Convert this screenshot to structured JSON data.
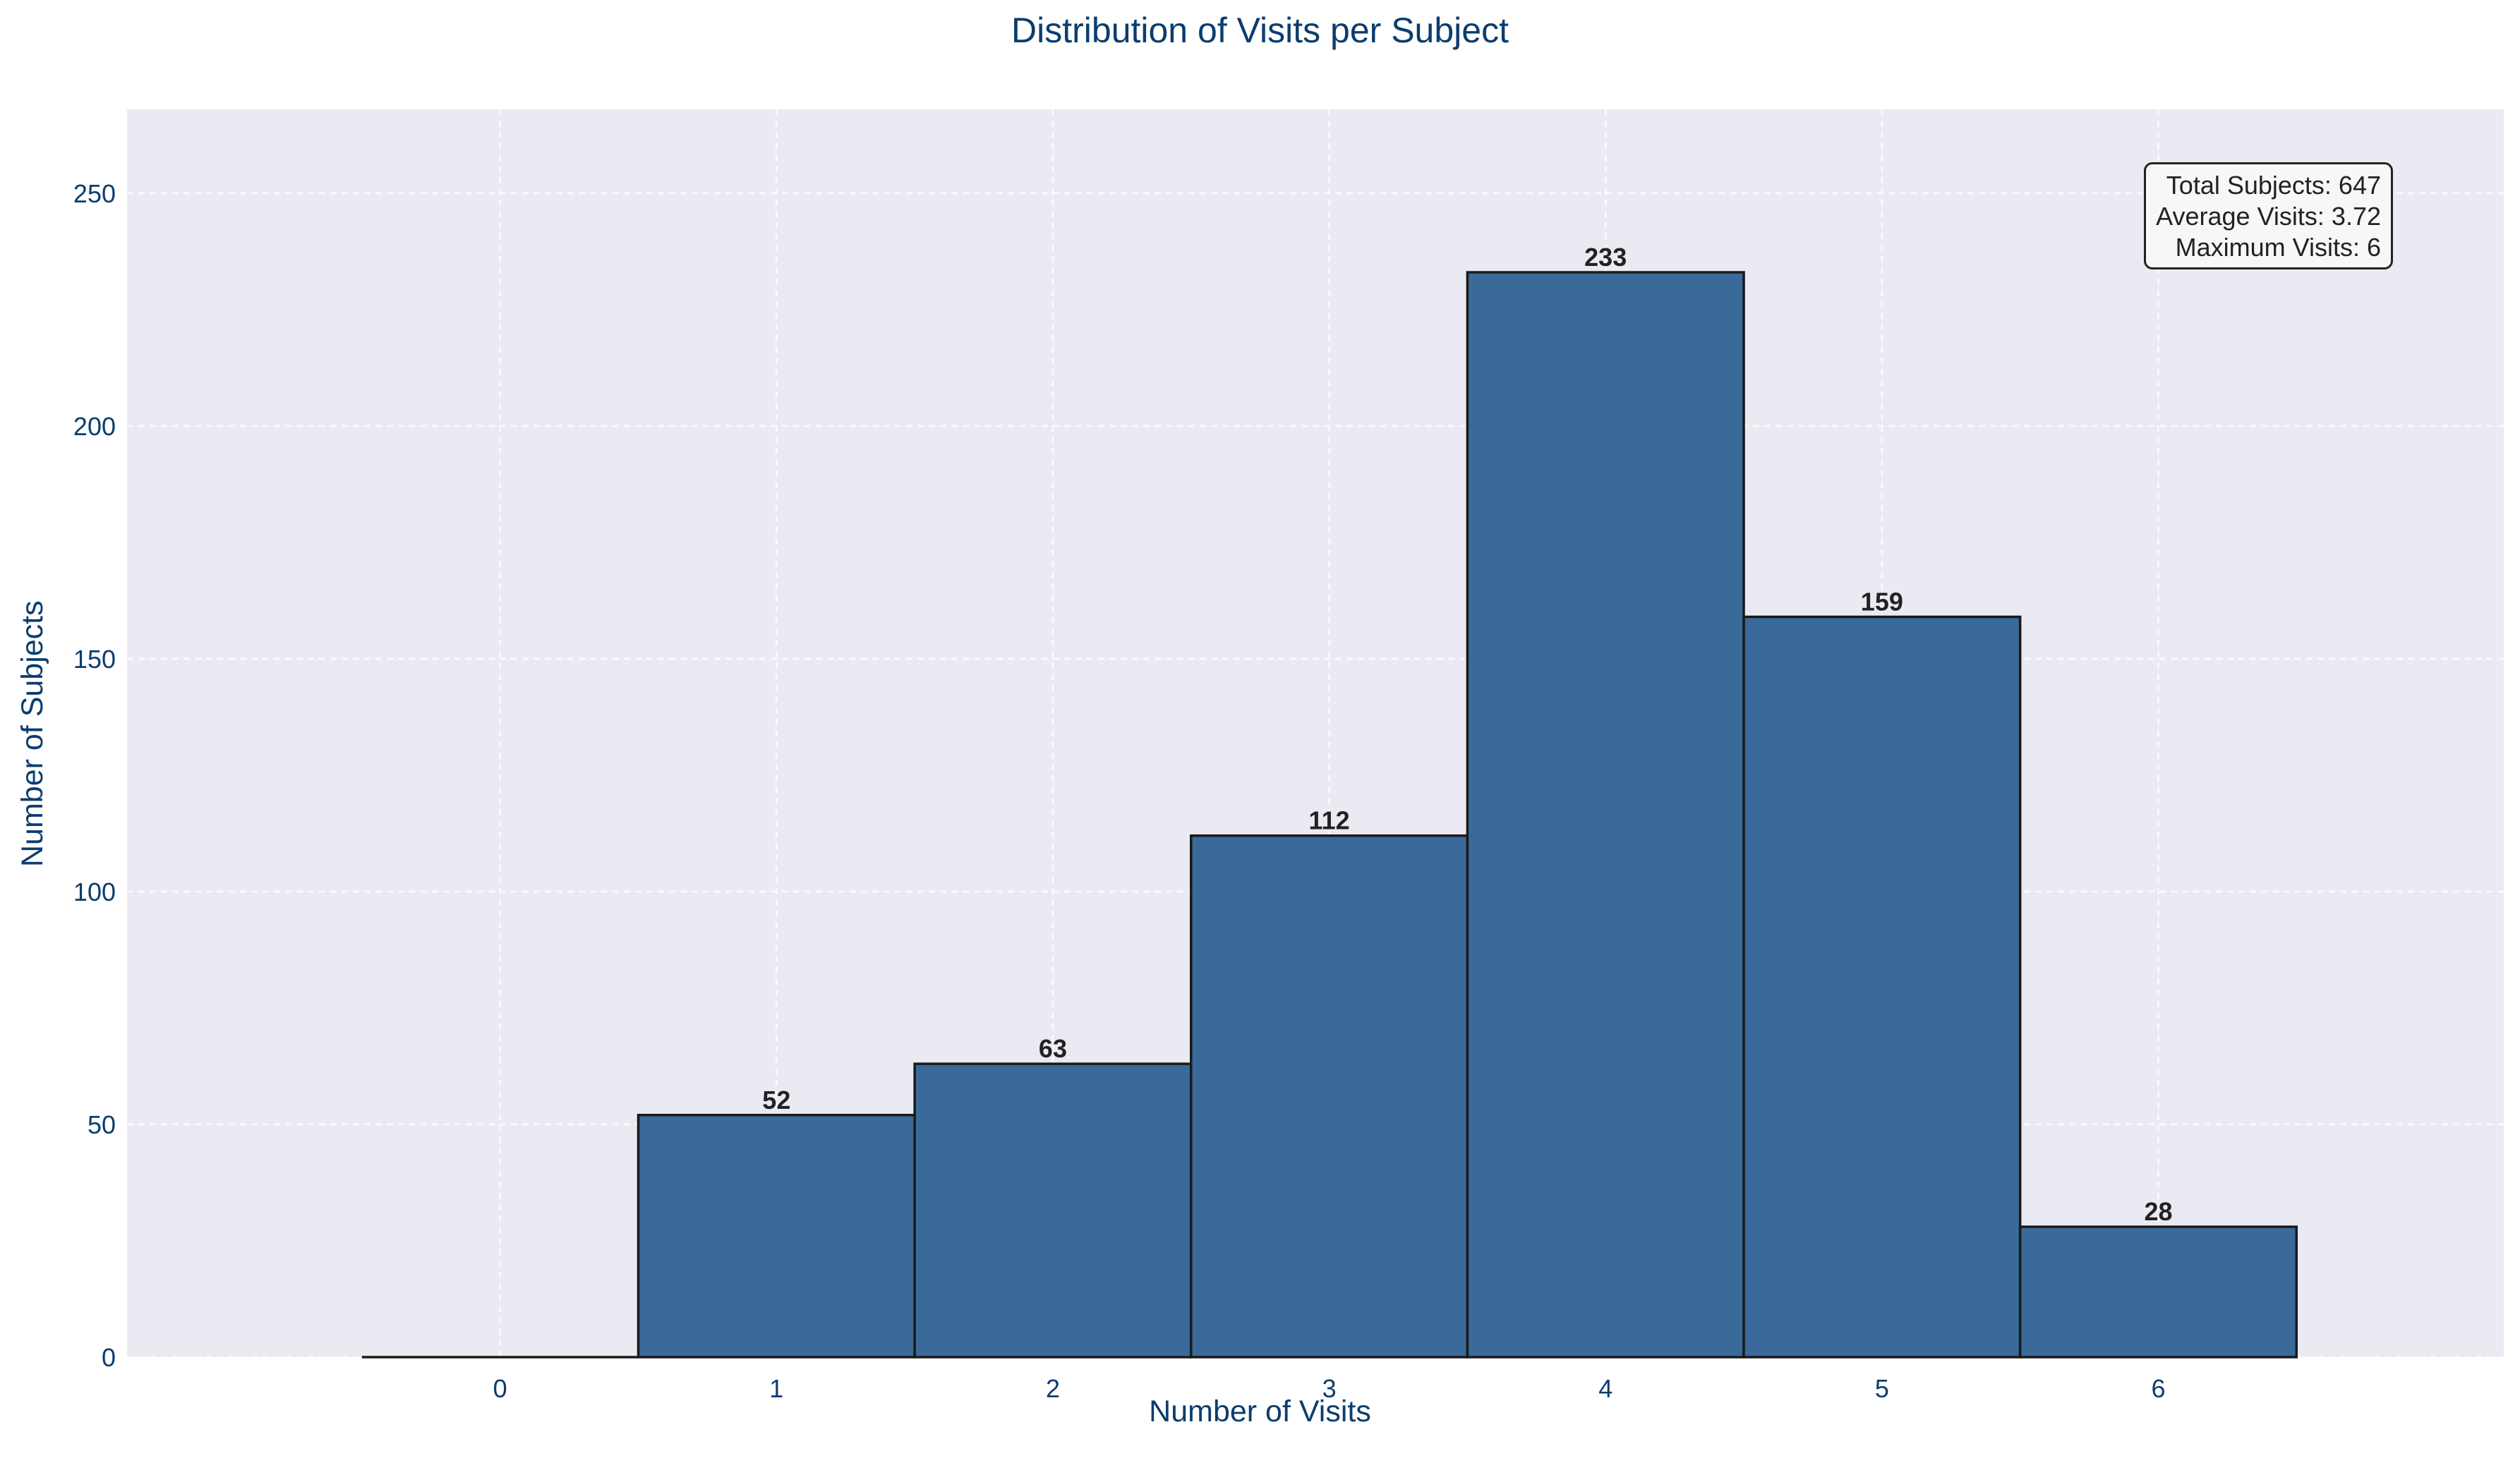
{
  "chart_data": {
    "type": "bar",
    "title": "Distribution of Visits per Subject",
    "xlabel": "Number of Visits",
    "ylabel": "Number of Subjects",
    "categories": [
      "0",
      "1",
      "2",
      "3",
      "4",
      "5",
      "6"
    ],
    "values": [
      0,
      52,
      63,
      112,
      233,
      159,
      28
    ],
    "data_labels": [
      "",
      "52",
      "63",
      "112",
      "233",
      "159",
      "28"
    ],
    "y_ticks": [
      0,
      50,
      100,
      150,
      200,
      250
    ],
    "y_tick_labels": [
      "0",
      "50",
      "100",
      "150",
      "200",
      "250"
    ],
    "ylim": [
      0,
      268
    ],
    "xlim": [
      -0.85,
      7.75
    ],
    "grid": true,
    "stats": {
      "total_line": "Total Subjects: 647",
      "average_line": "Average Visits: 3.72",
      "max_line": "Maximum Visits: 6"
    },
    "colors": {
      "bar": "#3a6a99",
      "bar_edge": "#1a1a1a",
      "plot_background": "#eaeaf2",
      "grid": "#ffffff",
      "text": "#0b3d6e",
      "label_text": "#222222"
    }
  }
}
